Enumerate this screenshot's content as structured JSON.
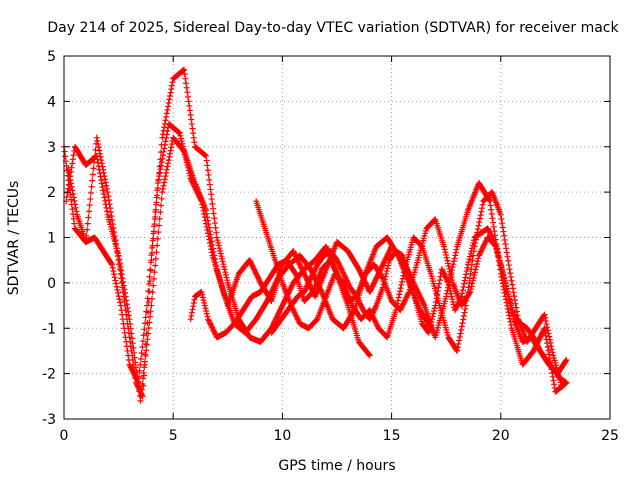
{
  "chart_data": {
    "type": "scatter",
    "title": "Day 214 of 2025, Sidereal Day-to-day VTEC variation (SDTVAR) for receiver mack",
    "xlabel": "GPS time / hours",
    "ylabel": "SDTVAR / TECUs",
    "xlim": [
      0,
      25
    ],
    "ylim": [
      -3,
      5
    ],
    "xticks": [
      0,
      5,
      10,
      15,
      20,
      25
    ],
    "yticks": [
      -3,
      -2,
      -1,
      0,
      1,
      2,
      3,
      4,
      5
    ],
    "grid": true,
    "marker": "+",
    "series_color": "#ff0000",
    "series": [
      {
        "name": "trace-1",
        "x": [
          0.0,
          0.5,
          1.0,
          1.5,
          2.0,
          2.5,
          3.0,
          3.3,
          3.6,
          4.0,
          4.5,
          5.0,
          5.5,
          6.0,
          6.5,
          7.0,
          7.5,
          8.0,
          8.5,
          9.0,
          9.5,
          10.0,
          10.5,
          11.0,
          11.5,
          12.0,
          12.5,
          13.0,
          13.5,
          14.0
        ],
        "y": [
          3.0,
          1.2,
          0.9,
          3.2,
          2.0,
          0.5,
          -1.2,
          -2.2,
          -2.5,
          0.5,
          3.2,
          4.5,
          4.7,
          3.0,
          2.8,
          1.0,
          0.0,
          -0.8,
          -1.2,
          -1.3,
          -1.0,
          -0.5,
          0.0,
          0.3,
          0.5,
          0.8,
          0.2,
          -0.5,
          -1.3,
          -1.6
        ]
      },
      {
        "name": "trace-2",
        "x": [
          0.2,
          0.6,
          1.0,
          1.4,
          1.8,
          2.2,
          2.6,
          3.0,
          3.4,
          3.8,
          4.3,
          4.8,
          5.3,
          5.8,
          6.3,
          6.8,
          7.3,
          7.8,
          8.3,
          8.8,
          9.3,
          9.8,
          10.3,
          10.8,
          11.3,
          11.8,
          12.3,
          12.8,
          13.3,
          13.8,
          14.3,
          14.8,
          15.3,
          15.8,
          16.3,
          16.8
        ],
        "y": [
          2.5,
          1.5,
          0.9,
          1.0,
          0.7,
          0.4,
          -0.5,
          -1.8,
          -2.2,
          -0.5,
          2.2,
          3.5,
          3.3,
          2.3,
          1.8,
          0.6,
          -0.2,
          -0.9,
          -1.1,
          -0.8,
          -0.4,
          0.1,
          0.4,
          0.6,
          0.3,
          -0.2,
          -0.8,
          -1.0,
          -0.6,
          0.2,
          0.8,
          1.0,
          0.6,
          0.0,
          -0.6,
          -1.0
        ]
      },
      {
        "name": "trace-3",
        "x": [
          0.1,
          0.5,
          1.0,
          1.5,
          2.0,
          2.5,
          3.0,
          3.5,
          4.0,
          4.5,
          5.0,
          5.5,
          6.0,
          6.5,
          7.0,
          7.5,
          8.0,
          8.5,
          9.0,
          9.5,
          10.0,
          10.5,
          11.0,
          11.5,
          12.0,
          12.5,
          13.0,
          13.5,
          14.0,
          14.5,
          15.0,
          15.5,
          16.0,
          16.5,
          17.0,
          17.5,
          18.0,
          18.5,
          19.0,
          19.5,
          20.0,
          20.5,
          21.0,
          21.5,
          22.0,
          22.5,
          23.0
        ],
        "y": [
          1.8,
          3.0,
          2.6,
          2.8,
          1.5,
          0.6,
          -0.8,
          -2.6,
          -0.5,
          2.0,
          3.2,
          2.9,
          2.2,
          1.6,
          0.3,
          -0.5,
          0.2,
          0.5,
          0.0,
          -0.4,
          0.4,
          0.7,
          0.2,
          -0.3,
          0.3,
          0.9,
          0.7,
          0.3,
          -0.2,
          0.3,
          0.8,
          0.5,
          0.0,
          -0.5,
          -1.2,
          -0.3,
          0.8,
          1.6,
          2.2,
          1.8,
          0.2,
          -1.0,
          -1.8,
          -1.5,
          -1.0,
          -2.4,
          -2.2
        ]
      },
      {
        "name": "trace-4",
        "x": [
          5.8,
          6.0,
          6.3,
          6.6,
          7.0,
          7.4,
          7.8,
          8.2,
          8.6,
          9.0,
          9.4,
          9.8,
          10.2,
          10.6,
          11.0,
          11.4,
          11.8,
          12.2,
          12.6,
          13.0,
          13.4,
          13.8,
          14.2,
          14.6,
          15.0,
          15.4,
          15.8,
          16.2,
          16.6,
          17.0,
          17.4,
          17.8,
          18.2,
          18.6,
          19.0,
          19.4,
          19.8,
          20.2,
          20.6,
          21.0,
          21.4,
          21.8,
          22.2,
          22.6,
          23.0
        ],
        "y": [
          -0.8,
          -0.3,
          -0.2,
          -0.8,
          -1.2,
          -1.1,
          -0.9,
          -0.6,
          -0.3,
          -0.2,
          0.1,
          0.4,
          0.5,
          0.2,
          -0.4,
          -0.2,
          0.3,
          0.5,
          0.1,
          -0.4,
          -0.3,
          0.2,
          0.4,
          0.1,
          -0.4,
          -0.6,
          -0.2,
          0.5,
          1.2,
          1.4,
          0.8,
          0.0,
          -0.5,
          -0.2,
          0.6,
          1.0,
          0.8,
          0.0,
          -0.8,
          -1.3,
          -1.2,
          -1.5,
          -1.8,
          -2.0,
          -1.7
        ]
      },
      {
        "name": "trace-5",
        "x": [
          8.8,
          9.2,
          9.6,
          10.0,
          10.4,
          10.8,
          11.2,
          11.6,
          12.0,
          12.4,
          12.8,
          13.2,
          13.6,
          14.0,
          14.4,
          14.8,
          15.2,
          15.6,
          16.0,
          16.4,
          16.8,
          17.2,
          17.6,
          18.0,
          18.4,
          18.8,
          19.2,
          19.6,
          20.0,
          20.4,
          20.8,
          21.2,
          21.6,
          22.0,
          22.4,
          22.8
        ],
        "y": [
          1.8,
          1.2,
          0.6,
          0.0,
          -0.5,
          -0.9,
          -1.0,
          -0.8,
          -0.3,
          0.2,
          0.0,
          -0.5,
          -0.8,
          -0.6,
          -1.0,
          -1.2,
          -0.6,
          0.3,
          1.0,
          0.8,
          0.2,
          -0.5,
          -1.2,
          -1.5,
          -0.5,
          0.8,
          1.8,
          2.0,
          1.5,
          0.3,
          -0.8,
          -1.3,
          -1.0,
          -0.7,
          -1.6,
          -2.3
        ]
      },
      {
        "name": "trace-6",
        "x": [
          9.5,
          9.8,
          10.1,
          10.4,
          10.7,
          11.0,
          11.3,
          11.6,
          11.9,
          12.2,
          12.5,
          12.8,
          13.1,
          13.4,
          13.7,
          14.0,
          14.3,
          14.6,
          14.9,
          15.2,
          15.5,
          15.8,
          16.1,
          16.4,
          16.7,
          17.0,
          17.3,
          17.6,
          17.9,
          18.2,
          18.5,
          18.8,
          19.1,
          19.4,
          19.7,
          20.0,
          20.3,
          20.6,
          20.9,
          21.2,
          21.5,
          21.8,
          22.1,
          22.4,
          22.7,
          23.0
        ],
        "y": [
          -1.1,
          -0.9,
          -0.7,
          -0.5,
          -0.3,
          -0.2,
          0.1,
          0.4,
          0.6,
          0.7,
          0.5,
          0.2,
          -0.1,
          -0.3,
          -0.6,
          -0.8,
          -0.5,
          -0.1,
          0.5,
          0.7,
          0.6,
          0.2,
          -0.4,
          -0.9,
          -1.1,
          -0.5,
          0.3,
          0.0,
          -0.6,
          -0.3,
          0.4,
          1.0,
          1.1,
          1.2,
          0.9,
          0.4,
          -0.2,
          -0.7,
          -0.9,
          -1.0,
          -1.2,
          -1.5,
          -1.7,
          -1.9,
          -2.1,
          -2.2
        ]
      }
    ]
  }
}
